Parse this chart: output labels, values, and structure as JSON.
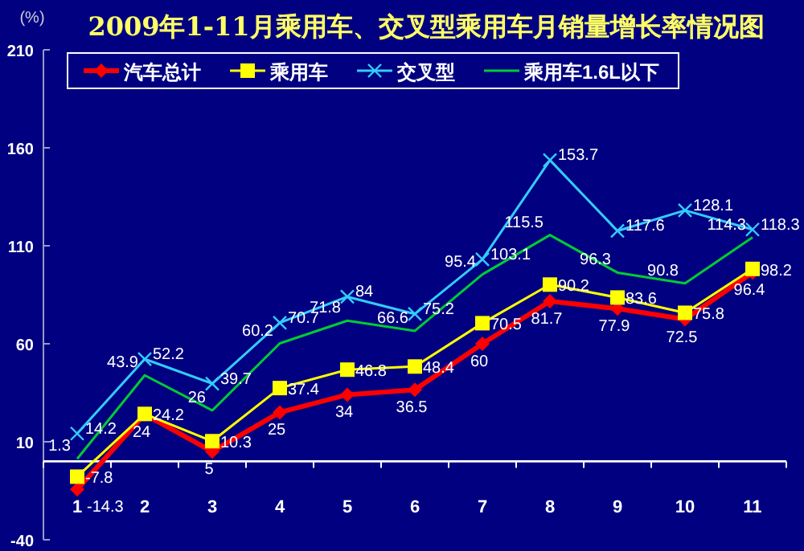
{
  "chart_data": {
    "type": "line",
    "title": "2009年1-11月乘用车、交叉型乘用车月销量增长率情况图",
    "ylabel": "(%)",
    "categories": [
      "1",
      "2",
      "3",
      "4",
      "5",
      "6",
      "7",
      "8",
      "9",
      "10",
      "11"
    ],
    "series": [
      {
        "name": "汽车总计",
        "color": "#ff0000",
        "marker": "diamond",
        "values": [
          -14.3,
          24,
          5,
          25,
          34,
          36.5,
          60,
          81.7,
          77.9,
          72.5,
          96.4
        ]
      },
      {
        "name": "乘用车",
        "color": "#ffff00",
        "marker": "square",
        "values": [
          -7.8,
          24.2,
          10.3,
          37.4,
          46.8,
          48.4,
          70.5,
          90.2,
          83.6,
          75.8,
          98.2
        ]
      },
      {
        "name": "交叉型",
        "color": "#33ccff",
        "marker": "cross",
        "values": [
          14.2,
          52.2,
          39.7,
          70.7,
          84,
          75.2,
          103.1,
          153.7,
          117.6,
          128.1,
          118.3
        ]
      },
      {
        "name": "乘用车1.6L以下",
        "color": "#00cc33",
        "marker": "none",
        "values": [
          1.3,
          43.9,
          26,
          60.2,
          71.8,
          66.6,
          95.4,
          115.5,
          96.3,
          90.8,
          114.3
        ]
      }
    ],
    "ylim": [
      -40,
      210
    ],
    "yticks": [
      -40,
      10,
      60,
      110,
      160,
      210
    ],
    "data_labels": true,
    "legend": "top",
    "grid": false
  }
}
